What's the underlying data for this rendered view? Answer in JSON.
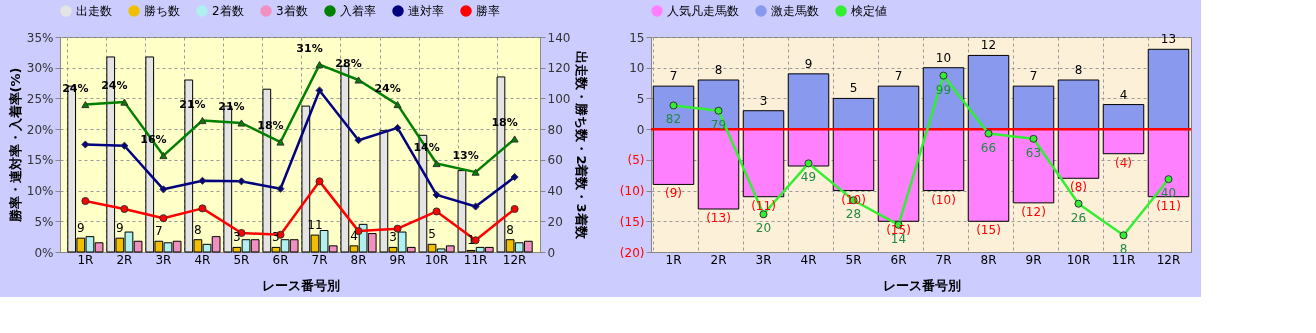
{
  "chart_data": [
    {
      "type": "bar",
      "categories": [
        "1R",
        "2R",
        "3R",
        "4R",
        "5R",
        "6R",
        "7R",
        "8R",
        "9R",
        "10R",
        "11R",
        "12R"
      ],
      "xlabel": "レース番号別",
      "ylabel": "勝率・連対率・入着率(%)",
      "y2label": "出走数・勝ち数・2着数・3着数",
      "ylim": [
        0,
        35
      ],
      "yticks": [
        {
          "value": 0,
          "label": "0%"
        },
        {
          "value": 5,
          "label": "5%"
        },
        {
          "value": 10,
          "label": "10%"
        },
        {
          "value": 15,
          "label": "15%"
        },
        {
          "value": 20,
          "label": "20%"
        },
        {
          "value": 25,
          "label": "25%"
        },
        {
          "value": 30,
          "label": "30%"
        },
        {
          "value": 35,
          "label": "35%"
        }
      ],
      "y2lim": [
        0,
        140
      ],
      "y2ticks": [
        0,
        20,
        40,
        60,
        80,
        100,
        120,
        140
      ],
      "grid": true,
      "legend": "top",
      "series": [
        {
          "name": "出走数",
          "type": "bar",
          "axis": "y2",
          "color": "#e4e4e4",
          "values": [
            108,
            127,
            127,
            112,
            95,
            106,
            95,
            121,
            79,
            76,
            53,
            114
          ]
        },
        {
          "name": "勝ち数",
          "type": "bar",
          "axis": "y2",
          "color": "#f0c000",
          "values": [
            9,
            9,
            7,
            8,
            3,
            3,
            11,
            4,
            3,
            5,
            1,
            8
          ],
          "value_labels": [
            "9",
            "9",
            "7",
            "8",
            "3",
            "3",
            "11",
            "4",
            "3",
            "5",
            "1",
            "8"
          ]
        },
        {
          "name": "2着数",
          "type": "bar",
          "axis": "y2",
          "color": "#b0f0f0",
          "values": [
            10,
            13,
            6,
            5,
            8,
            8,
            14,
            18,
            13,
            2,
            3,
            6
          ]
        },
        {
          "name": "3着数",
          "type": "bar",
          "axis": "y2",
          "color": "#f090c0",
          "values": [
            6,
            7,
            7,
            10,
            8,
            8,
            4,
            12,
            3,
            4,
            3,
            7
          ]
        },
        {
          "name": "入着率",
          "type": "line",
          "marker": "triangle",
          "color": "#008000",
          "values": [
            24.0,
            24.4,
            15.7,
            21.4,
            21.0,
            17.9,
            30.5,
            28.0,
            24.0,
            14.4,
            13.0,
            18.4
          ],
          "value_labels": [
            "24%",
            "24%",
            "16%",
            "21%",
            "21%",
            "18%",
            "31%",
            "28%",
            "24%",
            "14%",
            "13%",
            "18%"
          ]
        },
        {
          "name": "連対率",
          "type": "line",
          "marker": "diamond",
          "color": "#000080",
          "values": [
            17.5,
            17.3,
            10.2,
            11.6,
            11.5,
            10.3,
            26.3,
            18.2,
            20.2,
            9.3,
            7.4,
            12.2
          ]
        },
        {
          "name": "勝率",
          "type": "line",
          "marker": "circle",
          "color": "#ff0000",
          "values": [
            8.3,
            7.0,
            5.5,
            7.1,
            3.1,
            2.8,
            11.5,
            3.4,
            3.8,
            6.6,
            1.9,
            7.0
          ]
        }
      ]
    },
    {
      "type": "bar",
      "stacked": true,
      "categories": [
        "1R",
        "2R",
        "3R",
        "4R",
        "5R",
        "6R",
        "7R",
        "8R",
        "9R",
        "10R",
        "11R",
        "12R"
      ],
      "xlabel": "レース番号別",
      "ylim": [
        -20,
        15
      ],
      "yticks": [
        15,
        10,
        5,
        0,
        {
          "value": -5,
          "label": "(5)"
        },
        {
          "value": -10,
          "label": "(10)"
        },
        {
          "value": -15,
          "label": "(15)"
        },
        {
          "value": -20,
          "label": "(20)"
        }
      ],
      "y2lim": [
        -1.5,
        121
      ],
      "grid": true,
      "legend": "top",
      "ref_lines": [
        {
          "axis": "y",
          "value": 0,
          "color": "#ff0000"
        }
      ],
      "series": [
        {
          "name": "人気凡走馬数",
          "color": "#ff80ff",
          "values": [
            -9,
            -13,
            -11,
            -6,
            -10,
            -15,
            -10,
            -15,
            -12,
            -8,
            -4,
            -11
          ],
          "value_labels": [
            "(9)",
            "(13)",
            "(11)",
            null,
            "(10)",
            "(15)",
            "(10)",
            "(15)",
            "(12)",
            "(8)",
            "(4)",
            "(11)"
          ]
        },
        {
          "name": "激走馬数",
          "color": "#8899ee",
          "values": [
            7,
            8,
            3,
            9,
            5,
            7,
            10,
            12,
            7,
            8,
            4,
            13
          ],
          "value_labels": [
            "7",
            "8",
            "3",
            "9",
            "5",
            "7",
            "10",
            "12",
            "7",
            "8",
            "4",
            "13"
          ]
        },
        {
          "name": "検定値",
          "type": "line",
          "axis": "y2",
          "marker": "circle",
          "color": "#33ee33",
          "values": [
            82,
            79,
            20,
            49,
            28,
            14,
            99,
            66,
            63,
            26,
            8,
            40
          ],
          "value_labels": [
            "82",
            "79",
            "20",
            "49",
            "28",
            "14",
            "99",
            "66",
            "63",
            "26",
            "8",
            "40"
          ]
        }
      ]
    }
  ]
}
